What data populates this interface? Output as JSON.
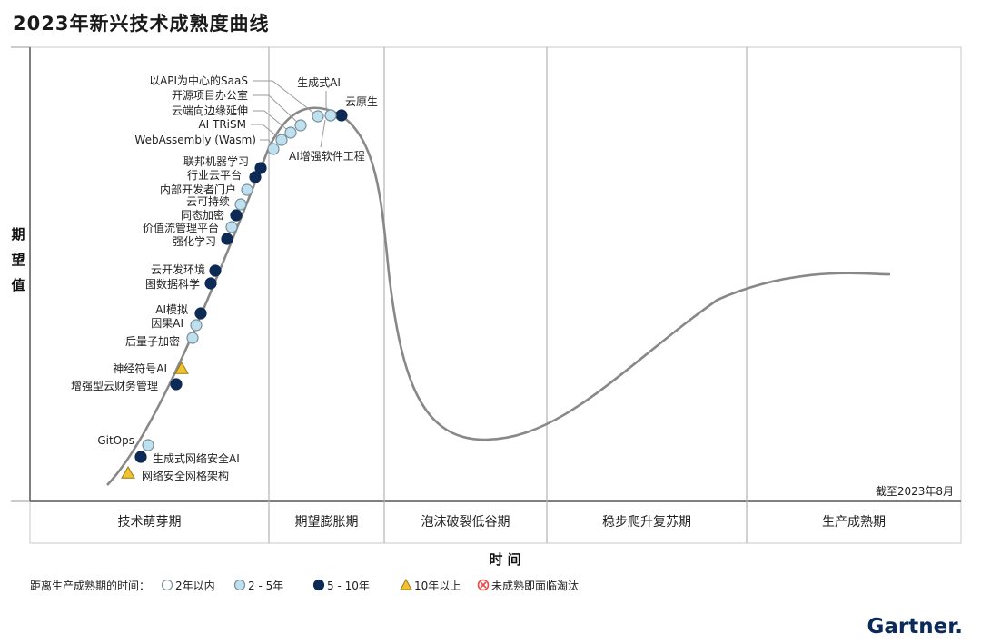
{
  "title": "2023年新兴技术成熟度曲线",
  "brand": "Gartner.",
  "colors": {
    "curve": "#888888",
    "frame": "#555555",
    "divider": "#b5b5b5",
    "cat_lt2": "#ffffff",
    "cat_2_5": "#bfe0ee",
    "cat_5_10": "#0d2a54",
    "cat_gt10": "#f2c230",
    "cat_obsolete": "#e84a4a"
  },
  "chart_data": {
    "type": "scatter",
    "title": "2023年新兴技术成熟度曲线",
    "xlabel": "时 间",
    "ylabel": "期望值",
    "note": "截至2023年8月",
    "phases": [
      "技术萌芽期",
      "期望膨胀期",
      "泡沫破裂低谷期",
      "稳步爬升复苏期",
      "生产成熟期"
    ],
    "legend": {
      "title": "距离生产成熟期的时间：",
      "items": [
        {
          "key": "lt2",
          "label": "2年以内",
          "shape": "circle"
        },
        {
          "key": "2_5",
          "label": "2 - 5年",
          "shape": "circle"
        },
        {
          "key": "5_10",
          "label": "5 - 10年",
          "shape": "circle"
        },
        {
          "key": "gt10",
          "label": "10年以上",
          "shape": "triangle"
        },
        {
          "key": "obsolete",
          "label": "未成熟即面临淘汰",
          "shape": "cross"
        }
      ]
    },
    "points": [
      {
        "label": "网络安全网格架构",
        "cat": "gt10"
      },
      {
        "label": "生成式网络安全AI",
        "cat": "5_10"
      },
      {
        "label": "GitOps",
        "cat": "2_5"
      },
      {
        "label": "增强型云财务管理",
        "cat": "5_10"
      },
      {
        "label": "神经符号AI",
        "cat": "gt10"
      },
      {
        "label": "后量子加密",
        "cat": "2_5"
      },
      {
        "label": "因果AI",
        "cat": "2_5"
      },
      {
        "label": "AI模拟",
        "cat": "5_10"
      },
      {
        "label": "图数据科学",
        "cat": "5_10"
      },
      {
        "label": "云开发环境",
        "cat": "5_10"
      },
      {
        "label": "强化学习",
        "cat": "5_10"
      },
      {
        "label": "价值流管理平台",
        "cat": "2_5"
      },
      {
        "label": "同态加密",
        "cat": "5_10"
      },
      {
        "label": "云可持续",
        "cat": "2_5"
      },
      {
        "label": "内部开发者门户",
        "cat": "2_5"
      },
      {
        "label": "行业云平台",
        "cat": "5_10"
      },
      {
        "label": "联邦机器学习",
        "cat": "5_10"
      },
      {
        "label": "WebAssembly (Wasm)",
        "cat": "2_5"
      },
      {
        "label": "AI TRiSM",
        "cat": "2_5"
      },
      {
        "label": "云端向边缘延伸",
        "cat": "2_5"
      },
      {
        "label": "开源项目办公室",
        "cat": "2_5"
      },
      {
        "label": "以API为中心的SaaS",
        "cat": "2_5"
      },
      {
        "label": "生成式AI",
        "cat": "2_5"
      },
      {
        "label": "AI增强软件工程",
        "cat": "2_5"
      },
      {
        "label": "云原生",
        "cat": "5_10"
      }
    ]
  }
}
